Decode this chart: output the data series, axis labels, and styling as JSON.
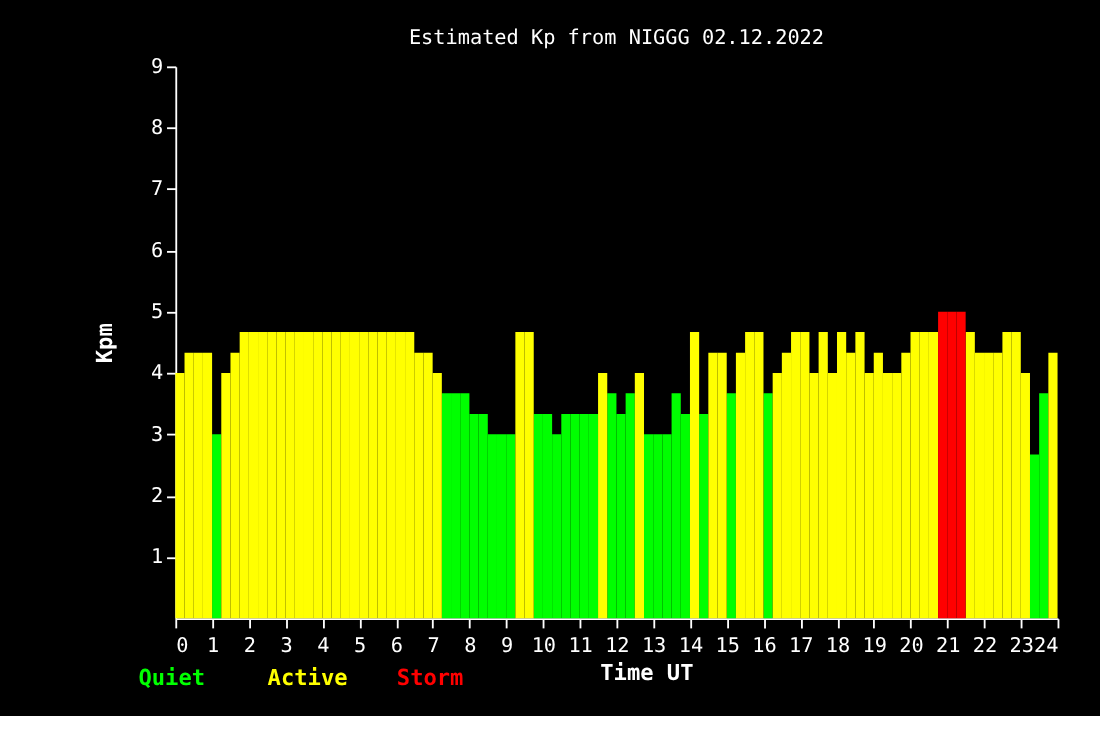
{
  "chart_data": {
    "type": "bar",
    "title": "Estimated Kp from NIGGG 02.12.2022",
    "xlabel": "Time UT",
    "ylabel": "Kpm",
    "xlim": [
      0,
      24
    ],
    "xticks": [
      0,
      1,
      2,
      3,
      4,
      5,
      6,
      7,
      8,
      9,
      10,
      11,
      12,
      13,
      14,
      15,
      16,
      17,
      18,
      19,
      20,
      21,
      22,
      23,
      24
    ],
    "ylim": [
      0,
      9
    ],
    "yticks": [
      1,
      2,
      3,
      4,
      5,
      6,
      7,
      8,
      9
    ],
    "legend": "bottom left",
    "series": [
      {
        "name": "Quiet",
        "color": "#00ff00",
        "x": [
          1.0,
          7.25,
          7.5,
          7.75,
          8.0,
          8.25,
          8.5,
          8.75,
          9.0,
          9.75,
          10.0,
          10.25,
          10.5,
          10.75,
          11.0,
          11.25,
          11.75,
          12.0,
          12.25,
          12.75,
          13.0,
          13.25,
          13.5,
          13.75,
          14.25,
          15.0,
          16.0,
          23.25,
          23.5
        ],
        "values": [
          3.0,
          3.67,
          3.67,
          3.67,
          3.33,
          3.33,
          3.0,
          3.0,
          3.0,
          3.33,
          3.33,
          3.0,
          3.33,
          3.33,
          3.33,
          3.33,
          3.67,
          3.33,
          3.67,
          3.0,
          3.0,
          3.0,
          3.67,
          3.33,
          3.33,
          3.67,
          3.67,
          2.67,
          3.67
        ]
      },
      {
        "name": "Active",
        "color": "#ffff00",
        "x": [
          0.0,
          0.25,
          0.5,
          0.75,
          1.25,
          1.5,
          1.75,
          2.0,
          2.25,
          2.5,
          2.75,
          3.0,
          3.25,
          3.5,
          3.75,
          4.0,
          4.25,
          4.5,
          4.75,
          5.0,
          5.25,
          5.5,
          5.75,
          6.0,
          6.25,
          6.5,
          6.75,
          7.0,
          9.25,
          9.5,
          11.5,
          12.5,
          14.0,
          14.5,
          14.75,
          15.25,
          15.5,
          15.75,
          16.25,
          16.5,
          16.75,
          17.0,
          17.25,
          17.5,
          17.75,
          18.0,
          18.25,
          18.5,
          18.75,
          19.0,
          19.25,
          19.5,
          19.75,
          20.0,
          20.25,
          20.5,
          21.5,
          21.75,
          22.0,
          22.25,
          22.5,
          22.75,
          23.0,
          23.75
        ],
        "values": [
          4.0,
          4.33,
          4.33,
          4.33,
          4.0,
          4.33,
          4.67,
          4.67,
          4.67,
          4.67,
          4.67,
          4.67,
          4.67,
          4.67,
          4.67,
          4.67,
          4.67,
          4.67,
          4.67,
          4.67,
          4.67,
          4.67,
          4.67,
          4.67,
          4.67,
          4.33,
          4.33,
          4.0,
          4.67,
          4.67,
          4.0,
          4.0,
          4.67,
          4.33,
          4.33,
          4.33,
          4.67,
          4.67,
          4.0,
          4.33,
          4.67,
          4.67,
          4.0,
          4.67,
          4.0,
          4.67,
          4.33,
          4.67,
          4.0,
          4.33,
          4.0,
          4.0,
          4.33,
          4.67,
          4.67,
          4.67,
          4.67,
          4.33,
          4.33,
          4.33,
          4.67,
          4.67,
          4.0,
          4.33
        ]
      },
      {
        "name": "Storm",
        "color": "#ff0000",
        "x": [
          20.75,
          21.0,
          21.25
        ],
        "values": [
          5.0,
          5.0,
          5.0
        ]
      }
    ]
  }
}
